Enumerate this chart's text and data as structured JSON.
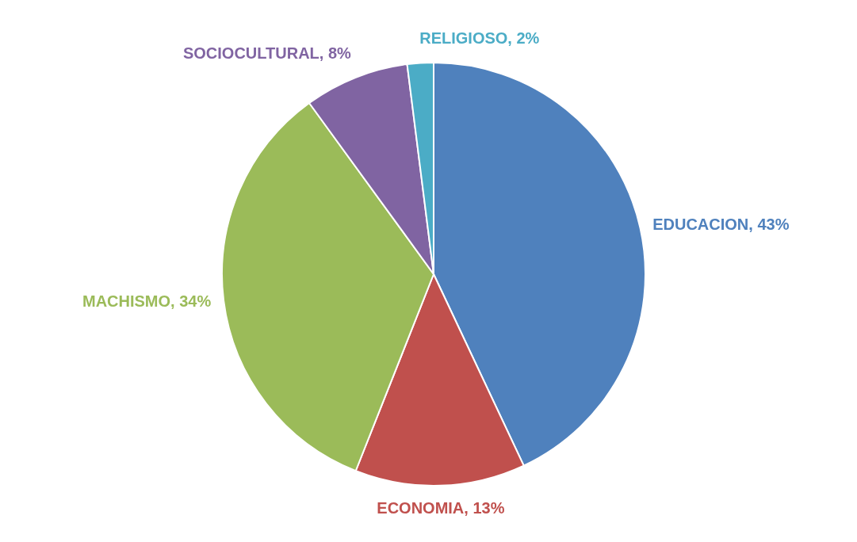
{
  "chart_data": {
    "type": "pie",
    "categories": [
      "EDUCACION",
      "ECONOMIA",
      "MACHISMO",
      "SOCIOCULTURAL",
      "RELIGIOSO"
    ],
    "values": [
      43,
      13,
      34,
      8,
      2
    ],
    "value_labels": [
      "43%",
      "13%",
      "34%",
      "8%",
      "2%"
    ],
    "colors": [
      "#4f81bd",
      "#c0504d",
      "#9bbb59",
      "#8064a2",
      "#4bacc6"
    ],
    "legend": false
  }
}
